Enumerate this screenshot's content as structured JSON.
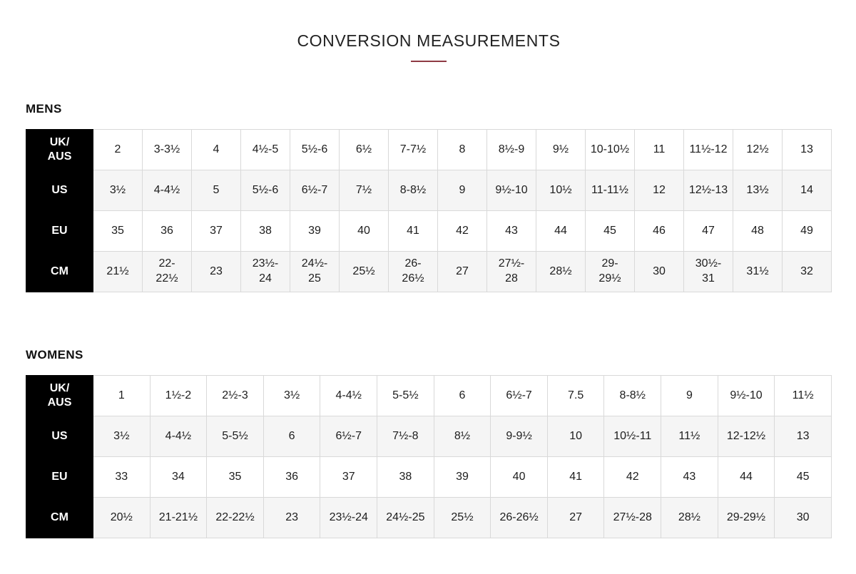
{
  "page": {
    "title": "CONVERSION MEASUREMENTS",
    "accent_color": "#8e3a44",
    "header_cell_bg": "#000000",
    "header_cell_text": "#ffffff",
    "alt_row_bg": "#f5f5f5",
    "border_color": "#d9d9d9"
  },
  "tables": [
    {
      "id": "mens",
      "section_label": "MENS",
      "rows": [
        {
          "key": "UK/AUS",
          "values": [
            "2",
            "3-3½",
            "4",
            "4½-5",
            "5½-6",
            "6½",
            "7-7½",
            "8",
            "8½-9",
            "9½",
            "10-10½",
            "11",
            "11½-12",
            "12½",
            "13"
          ]
        },
        {
          "key": "US",
          "values": [
            "3½",
            "4-4½",
            "5",
            "5½-6",
            "6½-7",
            "7½",
            "8-8½",
            "9",
            "9½-10",
            "10½",
            "11-11½",
            "12",
            "12½-13",
            "13½",
            "14"
          ]
        },
        {
          "key": "EU",
          "values": [
            "35",
            "36",
            "37",
            "38",
            "39",
            "40",
            "41",
            "42",
            "43",
            "44",
            "45",
            "46",
            "47",
            "48",
            "49"
          ]
        },
        {
          "key": "CM",
          "values": [
            "21½",
            "22-22½",
            "23",
            "23½-24",
            "24½-25",
            "25½",
            "26-26½",
            "27",
            "27½-28",
            "28½",
            "29-29½",
            "30",
            "30½-31",
            "31½",
            "32"
          ]
        }
      ]
    },
    {
      "id": "womens",
      "section_label": "WOMENS",
      "rows": [
        {
          "key": "UK/AUS",
          "values": [
            "1",
            "1½-2",
            "2½-3",
            "3½",
            "4-4½",
            "5-5½",
            "6",
            "6½-7",
            "7.5",
            "8-8½",
            "9",
            "9½-10",
            "11½"
          ]
        },
        {
          "key": "US",
          "values": [
            "3½",
            "4-4½",
            "5-5½",
            "6",
            "6½-7",
            "7½-8",
            "8½",
            "9-9½",
            "10",
            "10½-11",
            "11½",
            "12-12½",
            "13"
          ]
        },
        {
          "key": "EU",
          "values": [
            "33",
            "34",
            "35",
            "36",
            "37",
            "38",
            "39",
            "40",
            "41",
            "42",
            "43",
            "44",
            "45"
          ]
        },
        {
          "key": "CM",
          "values": [
            "20½",
            "21-21½",
            "22-22½",
            "23",
            "23½-24",
            "24½-25",
            "25½",
            "26-26½",
            "27",
            "27½-28",
            "28½",
            "29-29½",
            "30"
          ]
        }
      ]
    }
  ]
}
